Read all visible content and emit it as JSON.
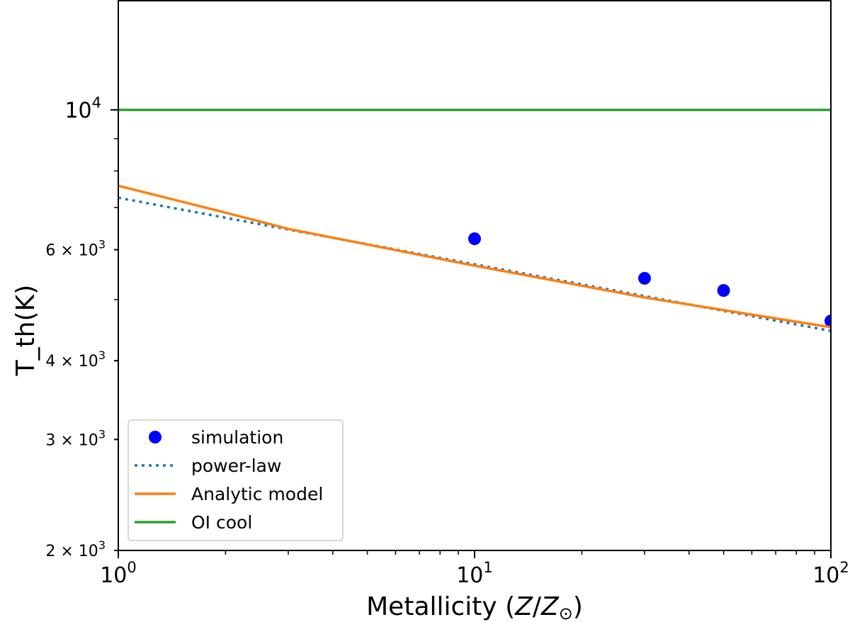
{
  "chart_data": {
    "type": "line",
    "title": "",
    "xlabel": "Metallicity (Z/Z⊙)",
    "ylabel": "T_th(K)",
    "xscale": "log",
    "yscale": "log",
    "xlim": [
      1,
      100
    ],
    "ylim": [
      2000,
      14900
    ],
    "grid": false,
    "legend_position": "lower-left",
    "x_ticks": [
      {
        "value": 1,
        "base": "10",
        "exp": "0"
      },
      {
        "value": 10,
        "base": "10",
        "exp": "1"
      },
      {
        "value": 100,
        "base": "10",
        "exp": "2"
      }
    ],
    "y_ticks": [
      {
        "value": 10000,
        "label": "10",
        "exp": "4"
      },
      {
        "value": 6000,
        "label": "6 × 10",
        "exp": "3"
      },
      {
        "value": 4000,
        "label": "4 × 10",
        "exp": "3"
      },
      {
        "value": 3000,
        "label": "3 × 10",
        "exp": "3"
      },
      {
        "value": 2000,
        "label": "2 × 10",
        "exp": "3"
      }
    ],
    "series": [
      {
        "name": "simulation",
        "kind": "scatter",
        "color": "#0000ff",
        "x": [
          10,
          30,
          50,
          100
        ],
        "y": [
          6245,
          5405,
          5170,
          4625
        ]
      },
      {
        "name": "power-law",
        "kind": "dotted-line",
        "color": "#1f77b4",
        "x": [
          1,
          100
        ],
        "y": [
          7255,
          4460
        ]
      },
      {
        "name": "Analytic model",
        "kind": "line",
        "color": "#ff7f0e",
        "x": [
          1,
          2,
          3,
          10,
          30,
          100
        ],
        "y": [
          7580,
          6870,
          6475,
          5660,
          5040,
          4520
        ]
      },
      {
        "name": "OI cool",
        "kind": "line",
        "color": "#2ca02c",
        "x": [
          1,
          100
        ],
        "y": [
          10000,
          10000
        ]
      }
    ]
  }
}
